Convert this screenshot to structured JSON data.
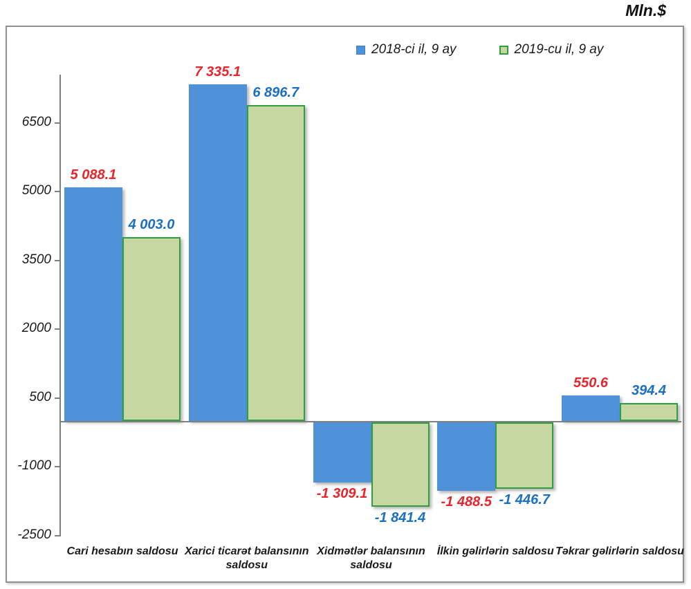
{
  "chart_data": {
    "type": "bar",
    "units": "Mln.$",
    "categories": [
      "Cari hesabın saldosu",
      "Xarici ticarət balansının saldosu",
      "Xidmətlər balansının saldosu",
      "İlkin gəlirlərin saldosu",
      "Təkrar gəlirlərin saldosu"
    ],
    "series": [
      {
        "name": "2018-ci il, 9 ay",
        "bar_color": "#4f92d7",
        "label_color": "#e8242c",
        "values": [
          5088.1,
          7335.1,
          -1309.1,
          -1488.5,
          550.6
        ],
        "labels": [
          "5 088.1",
          "7 335.1",
          "-1 309.1",
          "-1 488.5",
          "550.6"
        ]
      },
      {
        "name": "2019-cu il, 9 ay",
        "bar_color": "#c7d7a2",
        "bar_border_color": "#2f9e3e",
        "label_color": "#1b6fc1",
        "values": [
          4003.0,
          6896.7,
          -1841.4,
          -1446.7,
          394.4
        ],
        "labels": [
          "4 003.0",
          "6 896.7",
          "-1 841.4",
          "-1 446.7",
          "394.4"
        ]
      }
    ],
    "yticks": [
      6500,
      5000,
      3500,
      2000,
      500,
      -1000,
      -2500
    ],
    "y_tick_interval": 1500,
    "ylim": [
      -2500,
      7550
    ],
    "grid": false,
    "legend_position": "top-center"
  }
}
